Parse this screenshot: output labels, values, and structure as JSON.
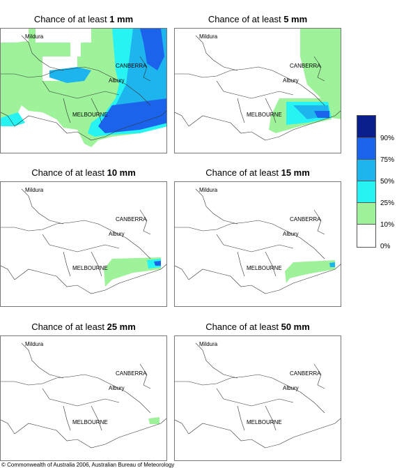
{
  "panels": [
    {
      "prefix": "Chance of at least ",
      "amount": "1 mm"
    },
    {
      "prefix": "Chance of at least ",
      "amount": "5 mm"
    },
    {
      "prefix": "Chance of at least ",
      "amount": "10 mm"
    },
    {
      "prefix": "Chance of at least ",
      "amount": "15 mm"
    },
    {
      "prefix": "Chance of at least ",
      "amount": "25 mm"
    },
    {
      "prefix": "Chance of at least ",
      "amount": "50 mm"
    }
  ],
  "places": {
    "mildura": "Mildura",
    "canberra": "CANBERRA",
    "albury": "Albury",
    "melbourne": "MELBOURNE"
  },
  "legend": {
    "labels": [
      "90%",
      "75%",
      "50%",
      "25%",
      "10%",
      "0%"
    ],
    "colors": [
      "#0a1f8c",
      "#1b63ea",
      "#1eb4ee",
      "#26f3f2",
      "#9ef29a",
      "#ffffff"
    ]
  },
  "copyright": "© Commonwealth of Australia 2006, Australian Bureau of Meteorology"
}
